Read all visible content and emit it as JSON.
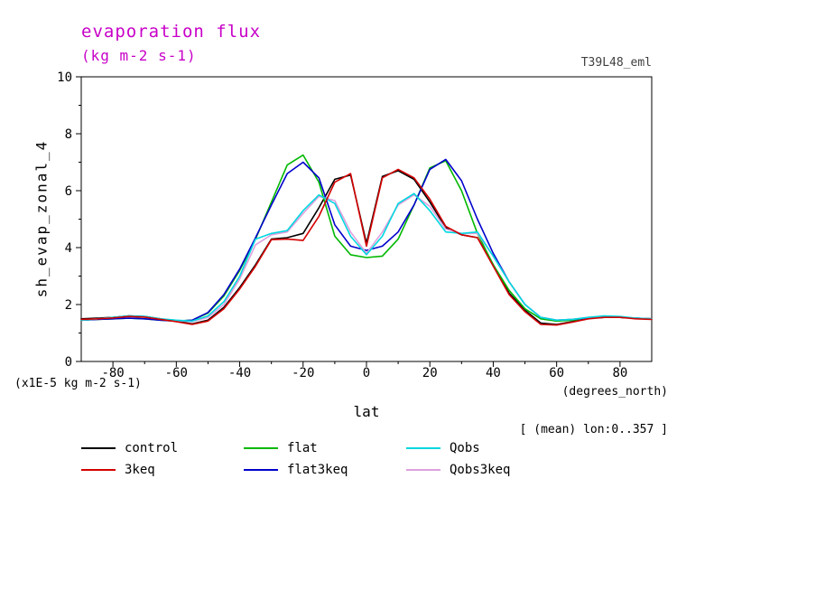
{
  "title": "evaporation flux",
  "subtitle": "(kg m-2 s-1)",
  "run_label": "T39L48_eml",
  "axis": {
    "y_label": "sh_evap_zonal_4",
    "x_label": "lat",
    "x_units": "(degrees_north)",
    "y_units_note": "(x1E-5 kg m-2 s-1)",
    "mean_note": "[ (mean) lon:0..357 ]"
  },
  "colors": {
    "title": "#c800c8",
    "axis": "#000000",
    "run_label": "#404040"
  },
  "legend_order": [
    "control",
    "flat",
    "Qobs",
    "3keq",
    "flat3keq",
    "Qobs3keq"
  ],
  "chart_data": {
    "type": "line",
    "title": "evaporation flux (kg m-2 s-1)",
    "xlabel": "lat (degrees_north)",
    "ylabel": "sh_evap_zonal_4 (x1E-5 kg m-2 s-1)",
    "xlim": [
      -90,
      90
    ],
    "ylim": [
      0,
      10
    ],
    "x_ticks": [
      -80,
      -60,
      -40,
      -20,
      0,
      20,
      40,
      60,
      80
    ],
    "x_minor_ticks": [
      -70,
      -50,
      -30,
      -10,
      10,
      30,
      50,
      70
    ],
    "y_ticks": [
      0,
      2,
      4,
      6,
      8,
      10
    ],
    "y_minor_ticks": [
      1,
      3,
      5,
      7,
      9
    ],
    "grid": false,
    "legend_position": "bottom",
    "x": [
      -90,
      -85,
      -80,
      -75,
      -70,
      -65,
      -60,
      -55,
      -50,
      -45,
      -40,
      -35,
      -30,
      -25,
      -20,
      -15,
      -10,
      -5,
      0,
      5,
      10,
      15,
      20,
      25,
      30,
      35,
      40,
      45,
      50,
      55,
      60,
      65,
      70,
      75,
      80,
      85,
      90
    ],
    "series": [
      {
        "name": "control",
        "color": "#000000",
        "values": [
          1.5,
          1.52,
          1.55,
          1.6,
          1.58,
          1.5,
          1.42,
          1.32,
          1.45,
          1.9,
          2.6,
          3.4,
          4.3,
          4.35,
          4.5,
          5.4,
          6.4,
          6.55,
          4.15,
          6.5,
          6.7,
          6.4,
          5.6,
          4.7,
          4.45,
          4.35,
          3.4,
          2.4,
          1.8,
          1.35,
          1.3,
          1.4,
          1.52,
          1.55,
          1.55,
          1.52,
          1.5
        ]
      },
      {
        "name": "flat",
        "color": "#00b800",
        "values": [
          1.45,
          1.48,
          1.5,
          1.52,
          1.5,
          1.45,
          1.42,
          1.45,
          1.7,
          2.3,
          3.2,
          4.3,
          5.6,
          6.9,
          7.25,
          6.3,
          4.4,
          3.75,
          3.65,
          3.7,
          4.3,
          5.5,
          6.8,
          7.05,
          6.0,
          4.5,
          3.4,
          2.5,
          1.85,
          1.5,
          1.42,
          1.45,
          1.52,
          1.55,
          1.55,
          1.52,
          1.5
        ]
      },
      {
        "name": "flat3keq",
        "color": "#0000cc",
        "values": [
          1.45,
          1.48,
          1.5,
          1.52,
          1.5,
          1.45,
          1.42,
          1.45,
          1.72,
          2.35,
          3.25,
          4.35,
          5.5,
          6.6,
          7.0,
          6.45,
          4.8,
          4.05,
          3.9,
          4.05,
          4.55,
          5.5,
          6.75,
          7.1,
          6.35,
          5.0,
          3.8,
          2.8,
          2.0,
          1.55,
          1.45,
          1.48,
          1.52,
          1.55,
          1.55,
          1.52,
          1.5
        ]
      },
      {
        "name": "Qobs3keq",
        "color": "#dda0dd",
        "values": [
          1.45,
          1.5,
          1.54,
          1.58,
          1.56,
          1.5,
          1.44,
          1.4,
          1.55,
          2.0,
          2.9,
          4.1,
          4.45,
          4.55,
          5.2,
          5.8,
          5.65,
          4.55,
          3.8,
          4.55,
          5.5,
          5.85,
          5.45,
          4.65,
          4.5,
          4.5,
          3.7,
          2.8,
          2.0,
          1.55,
          1.45,
          1.48,
          1.55,
          1.58,
          1.56,
          1.52,
          1.5
        ]
      },
      {
        "name": "Qobs",
        "color": "#00d8e0",
        "values": [
          1.45,
          1.5,
          1.55,
          1.6,
          1.58,
          1.5,
          1.45,
          1.42,
          1.6,
          2.1,
          3.0,
          4.3,
          4.5,
          4.6,
          5.3,
          5.85,
          5.55,
          4.4,
          3.75,
          4.4,
          5.55,
          5.9,
          5.3,
          4.55,
          4.5,
          4.55,
          3.7,
          2.8,
          2.0,
          1.55,
          1.45,
          1.48,
          1.55,
          1.6,
          1.58,
          1.52,
          1.5
        ]
      },
      {
        "name": "3keq",
        "color": "#d40000",
        "values": [
          1.48,
          1.5,
          1.53,
          1.58,
          1.56,
          1.48,
          1.4,
          1.3,
          1.42,
          1.85,
          2.55,
          3.35,
          4.28,
          4.3,
          4.25,
          5.1,
          6.3,
          6.6,
          4.05,
          6.45,
          6.75,
          6.45,
          5.7,
          4.75,
          4.45,
          4.35,
          3.35,
          2.35,
          1.75,
          1.3,
          1.28,
          1.38,
          1.5,
          1.55,
          1.55,
          1.5,
          1.48
        ]
      }
    ]
  }
}
